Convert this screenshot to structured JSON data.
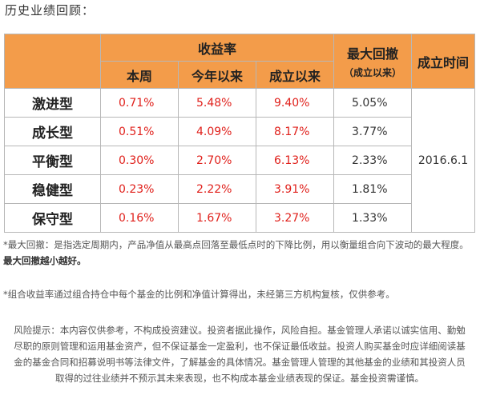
{
  "title": "历史业绩回顾：",
  "table": {
    "group_header": "收益率",
    "col_week": "本周",
    "col_ytd": "今年以来",
    "col_since": "成立以来",
    "col_drawdown": "最大回撤",
    "col_drawdown_sub": "（成立以来）",
    "col_inception": "成立时间",
    "inception_date": "2016.6.1",
    "rows": [
      {
        "name": "激进型",
        "week": "0.71%",
        "ytd": "5.48%",
        "since": "9.40%",
        "drawdown": "5.05%"
      },
      {
        "name": "成长型",
        "week": "0.51%",
        "ytd": "4.09%",
        "since": "8.17%",
        "drawdown": "3.77%"
      },
      {
        "name": "平衡型",
        "week": "0.30%",
        "ytd": "2.70%",
        "since": "6.13%",
        "drawdown": "2.33%"
      },
      {
        "name": "稳健型",
        "week": "0.23%",
        "ytd": "2.22%",
        "since": "3.91%",
        "drawdown": "1.81%"
      },
      {
        "name": "保守型",
        "week": "0.16%",
        "ytd": "1.67%",
        "since": "3.27%",
        "drawdown": "1.33%"
      }
    ]
  },
  "notes": {
    "drawdown_note": "*最大回撤：是指选定周期内，产品净值从最高点回落至最低点时的下降比例，用以衡量组合向下波动的最大程度。",
    "drawdown_note_bold": "最大回撤越小越好。",
    "calc_note": "*组合收益率通过组合持仓中每个基金的比例和净值计算得出，未经第三方机构复核，仅供参考。",
    "risk_note": "风险提示：本内容仅供参考，不构成投资建议。投资者据此操作，风险自担。基金管理人承诺以诚实信用、勤勉尽职的原则管理和运用基金资产，但不保证基金一定盈利，也不保证最低收益。投资人购买基金时应详细阅读基金的基金合同和招募说明书等法律文件，了解基金的具体情况。基金管理人管理的其他基金的业绩和其投资人员取得的过往业绩并不预示其未来表现，也不构成本基金业绩表现的保证。基金投资需谨慎。"
  },
  "colors": {
    "header_bg": "#f39c4a",
    "value_red": "#e0201b",
    "border": "#b7b7b7"
  }
}
